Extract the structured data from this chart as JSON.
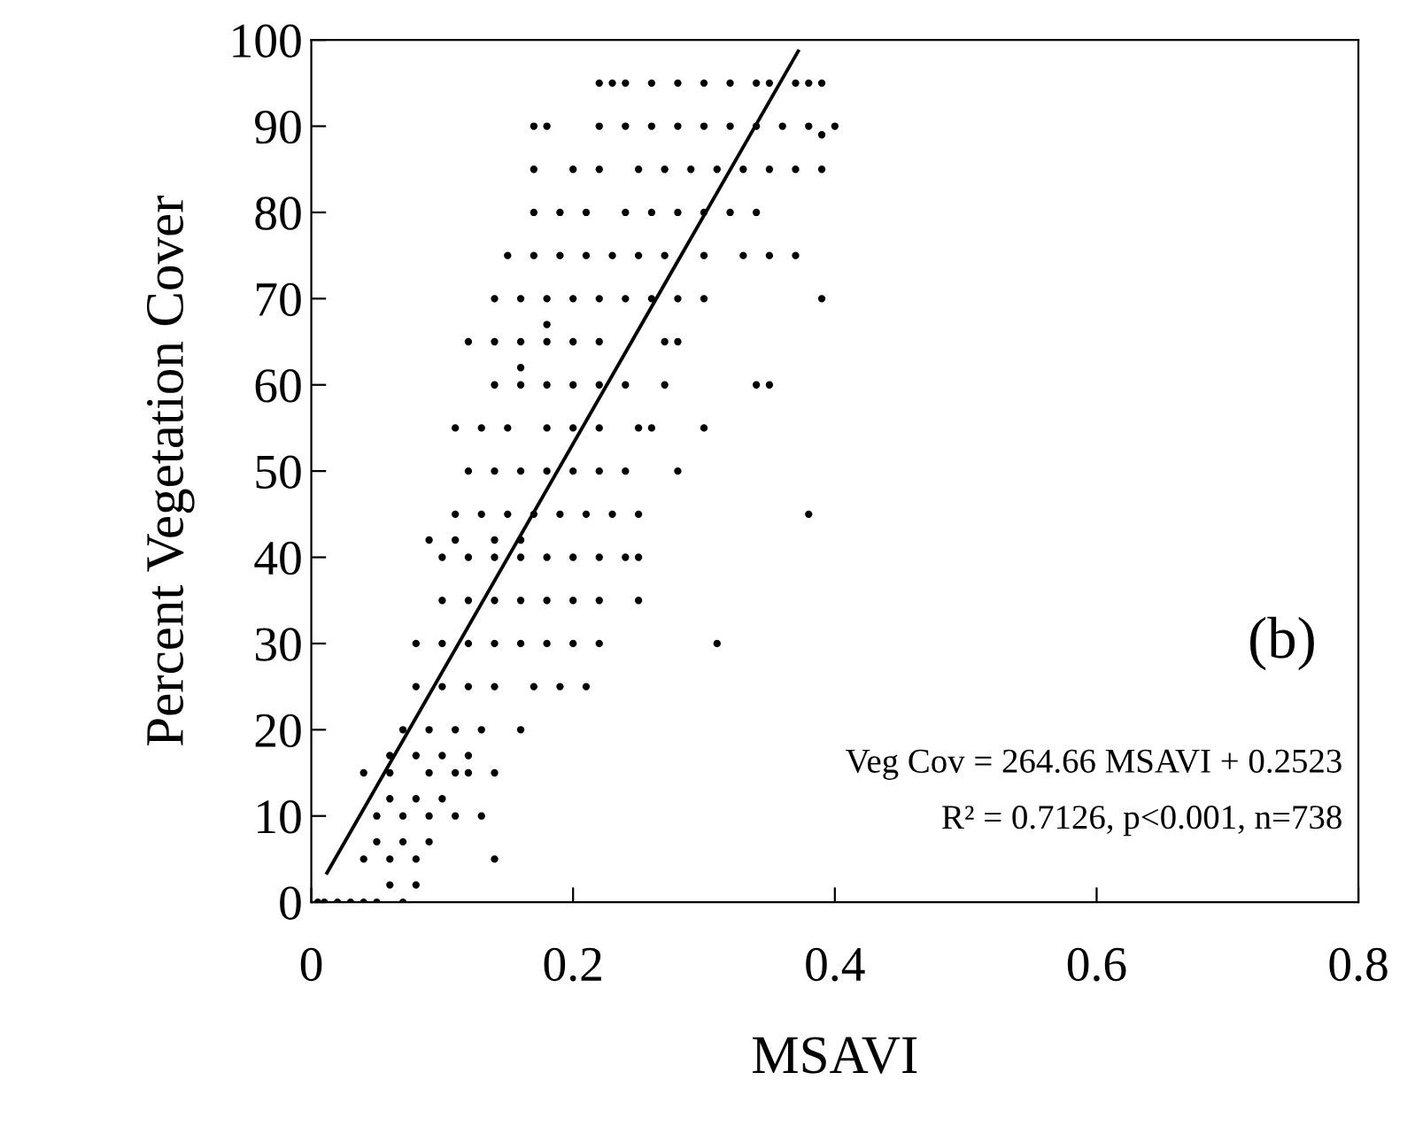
{
  "chart_data": {
    "type": "scatter",
    "xlabel": "MSAVI",
    "ylabel": "Percent Vegetation Cover",
    "xlim": [
      0,
      0.8
    ],
    "ylim": [
      0,
      100
    ],
    "xticks": [
      0,
      0.2,
      0.4,
      0.6,
      0.8
    ],
    "yticks": [
      0,
      10,
      20,
      30,
      40,
      50,
      60,
      70,
      80,
      90,
      100
    ],
    "grid": false,
    "legend": false,
    "marker": "circle",
    "annotations": [
      "(b)",
      "Veg Cov = 264.66 MSAVI + 0.2523",
      "R² = 0.7126, p<0.001, n=738"
    ],
    "series": [
      {
        "color": "#000000",
        "x": [
          0.22,
          0.23,
          0.24,
          0.26,
          0.28,
          0.3,
          0.32,
          0.34,
          0.35,
          0.37,
          0.38,
          0.39,
          0.17,
          0.18,
          0.22,
          0.24,
          0.26,
          0.28,
          0.3,
          0.32,
          0.34,
          0.36,
          0.38,
          0.4,
          0.39,
          0.17,
          0.2,
          0.22,
          0.25,
          0.27,
          0.29,
          0.31,
          0.33,
          0.35,
          0.37,
          0.39,
          0.17,
          0.19,
          0.21,
          0.24,
          0.26,
          0.28,
          0.3,
          0.32,
          0.34,
          0.15,
          0.17,
          0.19,
          0.21,
          0.23,
          0.25,
          0.27,
          0.3,
          0.33,
          0.35,
          0.37,
          0.14,
          0.16,
          0.18,
          0.2,
          0.22,
          0.24,
          0.26,
          0.28,
          0.3,
          0.39,
          0.18,
          0.12,
          0.14,
          0.16,
          0.18,
          0.2,
          0.22,
          0.27,
          0.28,
          0.16,
          0.14,
          0.16,
          0.18,
          0.2,
          0.22,
          0.24,
          0.27,
          0.34,
          0.35,
          0.11,
          0.13,
          0.15,
          0.18,
          0.2,
          0.22,
          0.25,
          0.26,
          0.3,
          0.12,
          0.14,
          0.16,
          0.18,
          0.2,
          0.22,
          0.24,
          0.28,
          0.11,
          0.13,
          0.15,
          0.17,
          0.19,
          0.21,
          0.23,
          0.25,
          0.38,
          0.09,
          0.11,
          0.14,
          0.16,
          0.1,
          0.12,
          0.14,
          0.16,
          0.18,
          0.2,
          0.22,
          0.24,
          0.25,
          0.1,
          0.12,
          0.14,
          0.16,
          0.18,
          0.2,
          0.22,
          0.25,
          0.08,
          0.1,
          0.12,
          0.14,
          0.16,
          0.18,
          0.2,
          0.22,
          0.31,
          0.08,
          0.1,
          0.12,
          0.14,
          0.17,
          0.19,
          0.21,
          0.07,
          0.09,
          0.11,
          0.13,
          0.16,
          0.06,
          0.08,
          0.1,
          0.12,
          0.04,
          0.06,
          0.09,
          0.11,
          0.12,
          0.14,
          0.06,
          0.08,
          0.1,
          0.05,
          0.07,
          0.09,
          0.11,
          0.13,
          0.05,
          0.07,
          0.09,
          0.04,
          0.06,
          0.08,
          0.14,
          0.06,
          0.08,
          0.005,
          0.01,
          0.02,
          0.03,
          0.04,
          0.05,
          0.07
        ],
        "values": [
          95,
          95,
          95,
          95,
          95,
          95,
          95,
          95,
          95,
          95,
          95,
          95,
          90,
          90,
          90,
          90,
          90,
          90,
          90,
          90,
          90,
          90,
          90,
          90,
          89,
          85,
          85,
          85,
          85,
          85,
          85,
          85,
          85,
          85,
          85,
          85,
          80,
          80,
          80,
          80,
          80,
          80,
          80,
          80,
          80,
          75,
          75,
          75,
          75,
          75,
          75,
          75,
          75,
          75,
          75,
          75,
          70,
          70,
          70,
          70,
          70,
          70,
          70,
          70,
          70,
          70,
          67,
          65,
          65,
          65,
          65,
          65,
          65,
          65,
          65,
          62,
          60,
          60,
          60,
          60,
          60,
          60,
          60,
          60,
          60,
          55,
          55,
          55,
          55,
          55,
          55,
          55,
          55,
          55,
          50,
          50,
          50,
          50,
          50,
          50,
          50,
          50,
          45,
          45,
          45,
          45,
          45,
          45,
          45,
          45,
          45,
          42,
          42,
          42,
          42,
          40,
          40,
          40,
          40,
          40,
          40,
          40,
          40,
          40,
          35,
          35,
          35,
          35,
          35,
          35,
          35,
          35,
          30,
          30,
          30,
          30,
          30,
          30,
          30,
          30,
          30,
          25,
          25,
          25,
          25,
          25,
          25,
          25,
          20,
          20,
          20,
          20,
          20,
          17,
          17,
          17,
          17,
          15,
          15,
          15,
          15,
          15,
          15,
          12,
          12,
          12,
          10,
          10,
          10,
          10,
          10,
          7,
          7,
          7,
          5,
          5,
          5,
          5,
          2,
          2,
          0,
          0,
          0,
          0,
          0,
          0,
          0
        ]
      },
      {
        "type": "line",
        "color": "#000000",
        "line_style": "solid",
        "marker": "none",
        "x": [
          0.012,
          0.372
        ],
        "values": [
          3.4,
          98.7
        ]
      }
    ]
  }
}
